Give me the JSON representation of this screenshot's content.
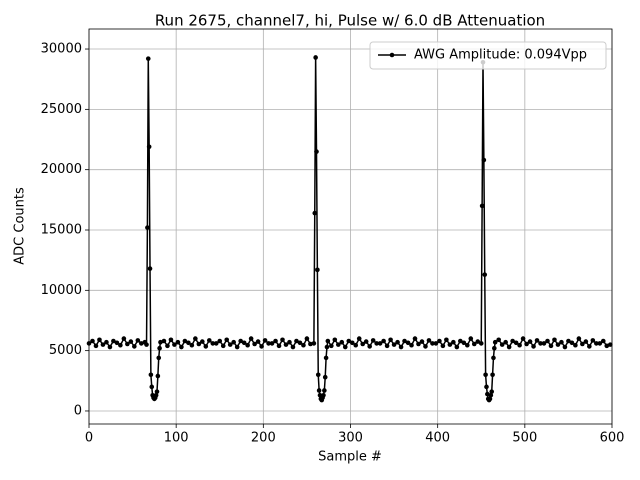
{
  "chart_data": {
    "type": "line",
    "title": "Run 2675, channel7, hi, Pulse w/ 6.0 dB Attenuation",
    "xlabel": "Sample #",
    "ylabel": "ADC Counts",
    "x": [
      0,
      4,
      8,
      12,
      16,
      20,
      24,
      28,
      32,
      36,
      40,
      44,
      48,
      52,
      56,
      60,
      64,
      66,
      67,
      68,
      69,
      70,
      71,
      72,
      73,
      74,
      75,
      76,
      77,
      78,
      79,
      80,
      81,
      82,
      86,
      90,
      94,
      98,
      102,
      106,
      110,
      114,
      118,
      122,
      126,
      130,
      134,
      138,
      142,
      146,
      150,
      154,
      158,
      162,
      166,
      170,
      174,
      178,
      182,
      186,
      190,
      194,
      198,
      202,
      206,
      210,
      214,
      218,
      222,
      226,
      230,
      234,
      238,
      242,
      246,
      250,
      254,
      258,
      259,
      260,
      261,
      262,
      263,
      264,
      265,
      266,
      267,
      268,
      269,
      270,
      271,
      272,
      273,
      274,
      278,
      282,
      286,
      290,
      294,
      298,
      302,
      306,
      310,
      314,
      318,
      322,
      326,
      330,
      334,
      338,
      342,
      346,
      350,
      354,
      358,
      362,
      366,
      370,
      374,
      378,
      382,
      386,
      390,
      394,
      398,
      402,
      406,
      410,
      414,
      418,
      422,
      426,
      430,
      434,
      438,
      442,
      446,
      450,
      451,
      452,
      453,
      454,
      455,
      456,
      457,
      458,
      459,
      460,
      461,
      462,
      463,
      464,
      465,
      466,
      470,
      474,
      478,
      482,
      486,
      490,
      494,
      498,
      502,
      506,
      510,
      514,
      518,
      522,
      526,
      530,
      534,
      538,
      542,
      546,
      550,
      554,
      558,
      562,
      566,
      570,
      574,
      578,
      582,
      586,
      590,
      594,
      598
    ],
    "series": [
      {
        "name": "AWG Amplitude: 0.094Vpp",
        "color": "#000000",
        "values": [
          5600,
          5800,
          5400,
          5900,
          5500,
          5700,
          5300,
          5800,
          5650,
          5450,
          6000,
          5550,
          5750,
          5350,
          5850,
          5600,
          5700,
          5500,
          15200,
          29200,
          21900,
          11800,
          3000,
          2000,
          1300,
          1100,
          1000,
          1100,
          1300,
          1600,
          2900,
          4400,
          5200,
          5700,
          5800,
          5400,
          5900,
          5500,
          5700,
          5300,
          5800,
          5650,
          5450,
          6000,
          5550,
          5750,
          5350,
          5850,
          5600,
          5600,
          5800,
          5400,
          5900,
          5500,
          5700,
          5300,
          5800,
          5650,
          5450,
          6000,
          5550,
          5750,
          5350,
          5850,
          5600,
          5600,
          5800,
          5400,
          5900,
          5500,
          5700,
          5300,
          5800,
          5650,
          5450,
          6000,
          5550,
          5600,
          16400,
          29300,
          21500,
          11700,
          3000,
          1700,
          1300,
          1000,
          900,
          1100,
          1300,
          1700,
          2800,
          4400,
          5300,
          5800,
          5400,
          5900,
          5500,
          5700,
          5300,
          5800,
          5650,
          5450,
          6000,
          5550,
          5750,
          5350,
          5850,
          5600,
          5600,
          5800,
          5400,
          5900,
          5500,
          5700,
          5300,
          5800,
          5650,
          5450,
          6000,
          5550,
          5750,
          5350,
          5850,
          5600,
          5600,
          5800,
          5400,
          5900,
          5500,
          5700,
          5300,
          5800,
          5650,
          5450,
          6000,
          5550,
          5750,
          5600,
          17000,
          28900,
          20800,
          11300,
          3000,
          2000,
          1400,
          1000,
          900,
          1000,
          1300,
          1600,
          3000,
          4400,
          5200,
          5700,
          5900,
          5500,
          5700,
          5300,
          5800,
          5650,
          5450,
          6000,
          5550,
          5750,
          5350,
          5850,
          5600,
          5600,
          5800,
          5400,
          5900,
          5500,
          5700,
          5300,
          5800,
          5650,
          5450,
          6000,
          5550,
          5750,
          5350,
          5850,
          5600,
          5600,
          5800,
          5400,
          5500
        ]
      }
    ],
    "xlim": [
      0,
      600
    ],
    "xticks": [
      0,
      100,
      200,
      300,
      400,
      500,
      600
    ],
    "ylim": [
      -1080,
      31660
    ],
    "yticks": [
      0,
      5000,
      10000,
      15000,
      20000,
      25000,
      30000
    ],
    "grid": true,
    "legend": "upper right"
  }
}
